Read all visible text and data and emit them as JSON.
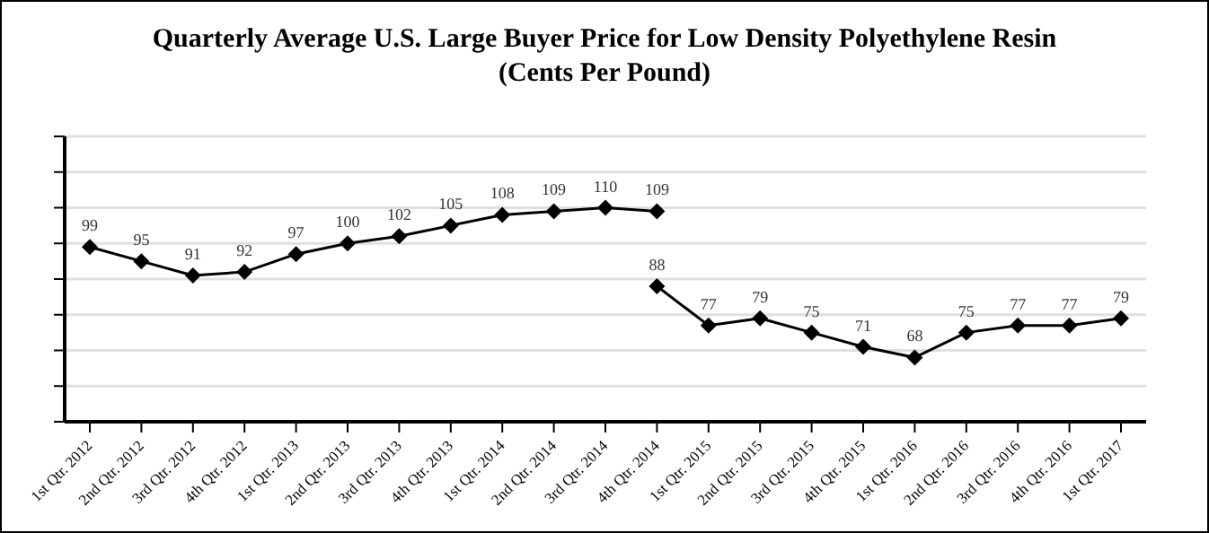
{
  "chart_data": {
    "type": "line",
    "title": "Quarterly Average U.S. Large Buyer Price for Low Density Polyethylene Resin",
    "subtitle": "(Cents Per Pound)",
    "categories": [
      "1st Qtr. 2012",
      "2nd Qtr. 2012",
      "3rd Qtr. 2012",
      "4th Qtr. 2012",
      "1st Qtr. 2013",
      "2nd Qtr. 2013",
      "3rd Qtr. 2013",
      "4th Qtr. 2013",
      "1st Qtr. 2014",
      "2nd Qtr. 2014",
      "3rd Qtr. 2014",
      "4th Qtr. 2014",
      "1st Qtr. 2015",
      "2nd Qtr. 2015",
      "3rd Qtr. 2015",
      "4th Qtr. 2015",
      "1st Qtr. 2016",
      "2nd Qtr. 2016",
      "3rd Qtr. 2016",
      "4th Qtr. 2016",
      "1st Qtr. 2017"
    ],
    "series": [
      {
        "color": "#000000",
        "values": [
          99,
          95,
          91,
          92,
          97,
          100,
          102,
          105,
          108,
          109,
          110,
          109,
          null,
          null,
          null,
          null,
          null,
          null,
          null,
          null,
          null
        ]
      },
      {
        "color": "#000000",
        "values": [
          null,
          null,
          null,
          null,
          null,
          null,
          null,
          null,
          null,
          null,
          null,
          88,
          77,
          79,
          75,
          71,
          68,
          75,
          77,
          77,
          79
        ]
      }
    ],
    "ylim": [
      50,
      130
    ],
    "yticks": [
      {
        "value": 50,
        "label": null
      },
      {
        "value": 60,
        "label": null
      },
      {
        "value": 70,
        "label": null
      },
      {
        "value": 80,
        "label": null
      },
      {
        "value": 90,
        "label": null
      },
      {
        "value": 100,
        "label": null
      },
      {
        "value": 110,
        "label": null
      },
      {
        "value": 120,
        "label": null
      },
      {
        "value": 130,
        "label": null
      }
    ],
    "tick_labels": "x",
    "grid": "y",
    "marker": "diamond",
    "line_style": "solid",
    "data_labels": true,
    "legend": false
  }
}
